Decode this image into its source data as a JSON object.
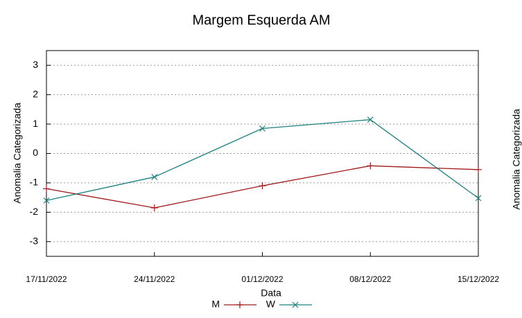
{
  "chart_data": {
    "type": "line",
    "title": "Margem Esquerda AM",
    "x_label": "Data",
    "y_label": "Anomalia Categorizada",
    "side_label": "Anomalia Categorizada",
    "categories": [
      "17/11/2022",
      "24/11/2022",
      "01/12/2022",
      "08/12/2022",
      "15/12/2022"
    ],
    "series": [
      {
        "name": "M",
        "color": "#a01818",
        "marker": "plus",
        "values": [
          -1.2,
          -1.85,
          -1.1,
          -0.42,
          -0.55
        ]
      },
      {
        "name": "W",
        "color": "#1a8080",
        "marker": "cross",
        "values": [
          -1.6,
          -0.8,
          0.85,
          1.15,
          -1.52
        ]
      }
    ],
    "ylim": [
      -3.5,
      3.5
    ],
    "yticks": [
      -3,
      -2,
      -1,
      0,
      1,
      2,
      3
    ],
    "grid": true,
    "legend": "bottom"
  }
}
